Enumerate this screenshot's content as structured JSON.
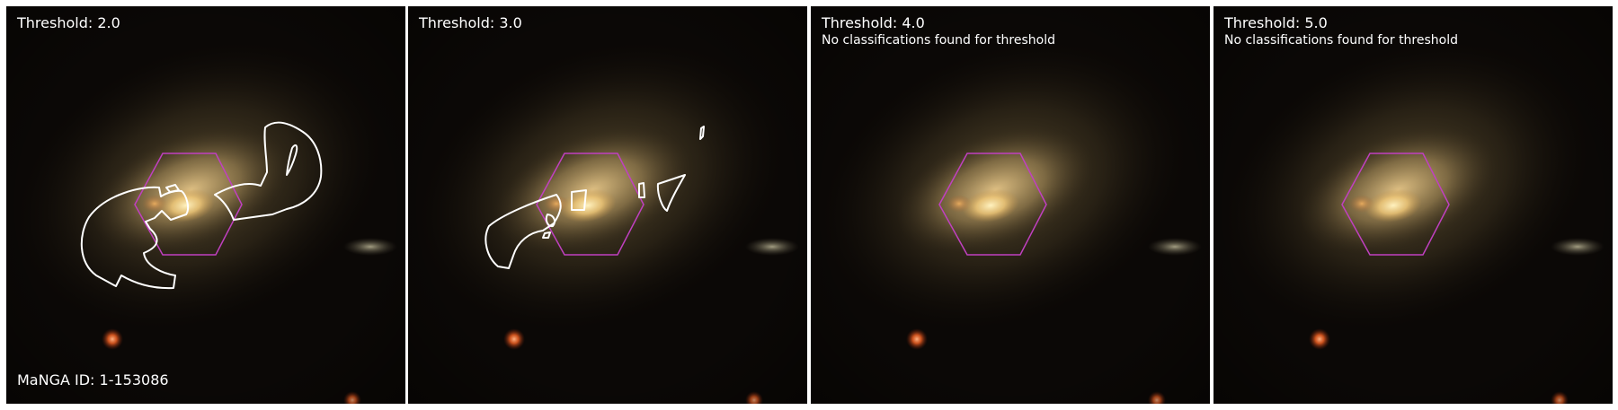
{
  "galaxy": {
    "id_label": "MaNGA ID: 1-153086"
  },
  "colors": {
    "background": "#0b0806",
    "hexagon": "#c040c0",
    "contour": "#ffffff",
    "label_text": "#ffffff"
  },
  "panels": [
    {
      "threshold_label": "Threshold: 2.0",
      "note": "",
      "has_contours": true
    },
    {
      "threshold_label": "Threshold: 3.0",
      "note": "",
      "has_contours": true
    },
    {
      "threshold_label": "Threshold: 4.0",
      "note": "No classifications found for threshold",
      "has_contours": false
    },
    {
      "threshold_label": "Threshold: 5.0",
      "note": "No classifications found for threshold",
      "has_contours": false
    }
  ]
}
